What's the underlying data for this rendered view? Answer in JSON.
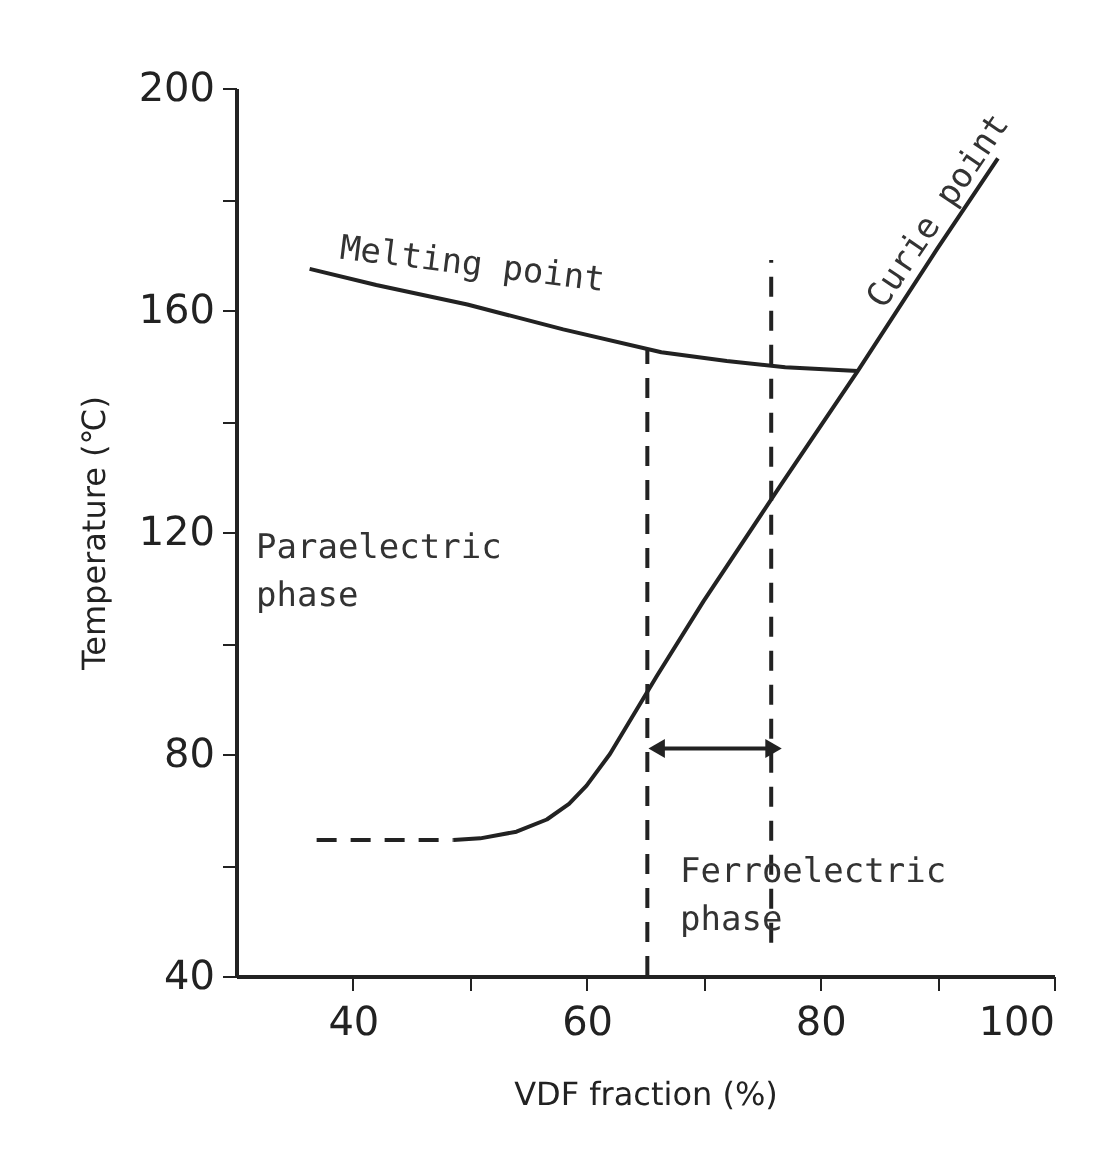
{
  "chart_data": {
    "type": "line",
    "xlabel": "VDF fraction (%)",
    "ylabel": "Temperature (℃)",
    "xlim": [
      30,
      100
    ],
    "ylim": [
      40,
      200
    ],
    "xticks": [
      40,
      {
        "value": 50,
        "label": null
      },
      60,
      {
        "value": 70,
        "label": null
      },
      80,
      {
        "value": 90,
        "label": null
      },
      100
    ],
    "yticks": [
      40,
      {
        "value": 60,
        "label": null
      },
      80,
      {
        "value": 100,
        "label": null
      },
      120,
      {
        "value": 140,
        "label": null
      },
      160,
      {
        "value": 180,
        "label": null
      },
      200
    ],
    "grid": false,
    "marker": "none",
    "series": [
      {
        "color": "#222222",
        "line_style": "solid",
        "x": [
          36.3,
          42,
          49.8,
          58,
          66.4,
          72,
          77,
          83.2
        ],
        "values": [
          167.4,
          164.5,
          161,
          156.5,
          152.4,
          150.8,
          149.7,
          149
        ]
      },
      {
        "color": "#222222",
        "line_style": "solid",
        "x": [
          48.6,
          50.9,
          54,
          56.6,
          58.5,
          60,
          62,
          66,
          70,
          76.6,
          83.2,
          90,
          95.2
        ],
        "values": [
          64.5,
          64.8,
          66,
          68.2,
          71,
          74.3,
          80,
          94,
          107.5,
          128.4,
          149,
          171,
          187.3
        ]
      },
      {
        "color": "#222222",
        "line_style": "dashed",
        "x": [
          36.9,
          48.6
        ],
        "values": [
          64.5,
          64.5
        ]
      },
      {
        "color": "#222222",
        "line_style": "dashed",
        "x": [
          65.2,
          65.2
        ],
        "values": [
          40,
          153
        ]
      },
      {
        "color": "#222222",
        "line_style": "dashed",
        "x": [
          75.8,
          75.8
        ],
        "values": [
          46,
          169
        ]
      },
      {
        "color": "#222222",
        "line_style": "solid",
        "marker": "triangle",
        "x": [
          66,
          76
        ],
        "values": [
          81,
          81
        ]
      }
    ],
    "annotations": [
      {
        "text": "Melting point",
        "x": 49.8,
        "y": 161
      },
      {
        "text": "Curie point",
        "x": 90,
        "y": 171
      },
      "Paraelectric phase",
      "Ferroelectric phase"
    ]
  }
}
